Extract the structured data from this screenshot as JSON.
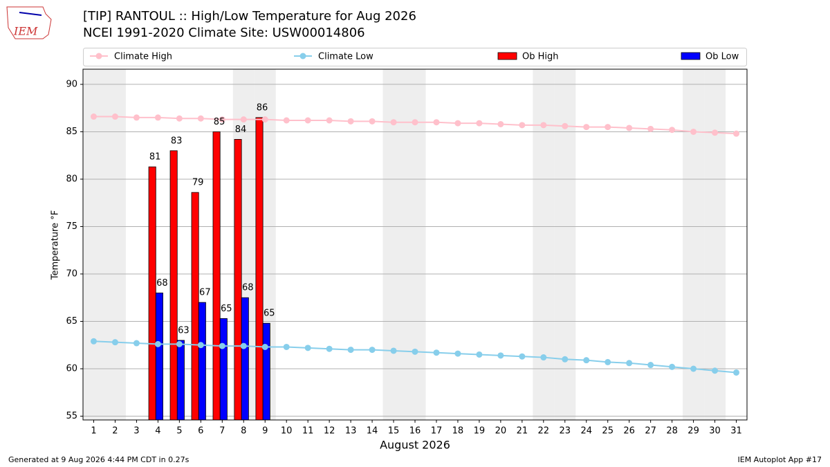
{
  "chart_data": {
    "type": "bar_line",
    "title": "[TIP] RANTOUL :: High/Low Temperature for Aug 2026",
    "subtitle": "NCEI 1991-2020 Climate Site: USW00014806",
    "xlabel": "August 2026",
    "ylabel": "Temperature °F",
    "footer_left": "Generated at 9 Aug 2026 4:44 PM CDT in 0.27s",
    "footer_right": "IEM Autoplot App #17",
    "logo": "IEM",
    "x": [
      1,
      2,
      3,
      4,
      5,
      6,
      7,
      8,
      9,
      10,
      11,
      12,
      13,
      14,
      15,
      16,
      17,
      18,
      19,
      20,
      21,
      22,
      23,
      24,
      25,
      26,
      27,
      28,
      29,
      30,
      31
    ],
    "weekend_days": [
      1,
      2,
      8,
      9,
      15,
      16,
      22,
      23,
      29,
      30
    ],
    "xlim": [
      0.5,
      31.5
    ],
    "xticks": [
      1,
      2,
      3,
      4,
      5,
      6,
      7,
      8,
      9,
      10,
      11,
      12,
      13,
      14,
      15,
      16,
      17,
      18,
      19,
      20,
      21,
      22,
      23,
      24,
      25,
      26,
      27,
      28,
      29,
      30,
      31
    ],
    "ylim": [
      54.6,
      91.6
    ],
    "yticks": [
      55,
      60,
      65,
      70,
      75,
      80,
      85,
      90
    ],
    "grid": true,
    "series": [
      {
        "name": "Climate High",
        "kind": "line",
        "color": "#ffc0cb",
        "values": [
          86.6,
          86.6,
          86.5,
          86.5,
          86.4,
          86.4,
          86.3,
          86.3,
          86.3,
          86.2,
          86.2,
          86.2,
          86.1,
          86.1,
          86.0,
          86.0,
          86.0,
          85.9,
          85.9,
          85.8,
          85.7,
          85.7,
          85.6,
          85.5,
          85.5,
          85.4,
          85.3,
          85.2,
          85.0,
          84.9,
          84.8
        ]
      },
      {
        "name": "Climate Low",
        "kind": "line",
        "color": "#87ceeb",
        "values": [
          62.9,
          62.8,
          62.7,
          62.6,
          62.6,
          62.5,
          62.4,
          62.4,
          62.3,
          62.3,
          62.2,
          62.1,
          62.0,
          62.0,
          61.9,
          61.8,
          61.7,
          61.6,
          61.5,
          61.4,
          61.3,
          61.2,
          61.0,
          60.9,
          60.7,
          60.6,
          60.4,
          60.2,
          60.0,
          59.8,
          59.6
        ]
      },
      {
        "name": "Ob High",
        "kind": "bar",
        "color": "#ff0000",
        "values": [
          null,
          null,
          null,
          81.3,
          83.0,
          78.6,
          85.0,
          84.2,
          86.5,
          null,
          null,
          null,
          null,
          null,
          null,
          null,
          null,
          null,
          null,
          null,
          null,
          null,
          null,
          null,
          null,
          null,
          null,
          null,
          null,
          null,
          null
        ],
        "value_labels": [
          null,
          null,
          null,
          "81",
          "83",
          "79",
          "85",
          "84",
          "86",
          null,
          null,
          null,
          null,
          null,
          null,
          null,
          null,
          null,
          null,
          null,
          null,
          null,
          null,
          null,
          null,
          null,
          null,
          null,
          null,
          null,
          null
        ]
      },
      {
        "name": "Ob Low",
        "kind": "bar",
        "color": "#0000ff",
        "values": [
          null,
          null,
          null,
          68.0,
          63.0,
          67.0,
          65.3,
          67.5,
          64.8,
          null,
          null,
          null,
          null,
          null,
          null,
          null,
          null,
          null,
          null,
          null,
          null,
          null,
          null,
          null,
          null,
          null,
          null,
          null,
          null,
          null,
          null
        ],
        "value_labels": [
          null,
          null,
          null,
          "68",
          "63",
          "67",
          "65",
          "68",
          "65",
          null,
          null,
          null,
          null,
          null,
          null,
          null,
          null,
          null,
          null,
          null,
          null,
          null,
          null,
          null,
          null,
          null,
          null,
          null,
          null,
          null,
          null
        ]
      }
    ]
  }
}
